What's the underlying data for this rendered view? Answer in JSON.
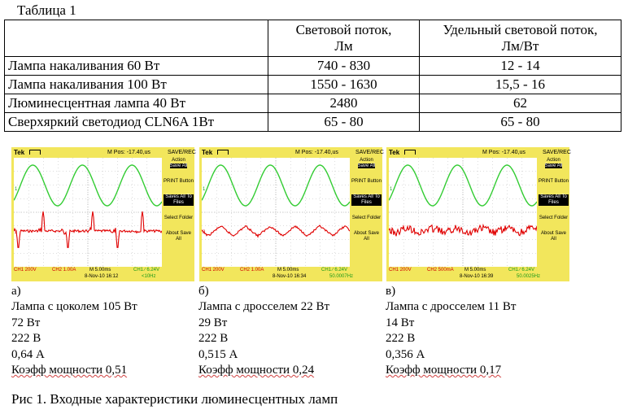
{
  "table": {
    "title": "Таблица 1",
    "headers": [
      "",
      "Световой поток, Лм",
      "Удельный световой поток, Лм/Вт"
    ],
    "rows": [
      [
        "Лампа накаливания 60 Вт",
        "740 - 830",
        "12 - 14"
      ],
      [
        "Лампа накаливания 100 Вт",
        "1550 - 1630",
        "15,5 - 16"
      ],
      [
        "Люминесцентная лампа 40 Вт",
        "2480",
        "62"
      ],
      [
        "Сверхяркий светодиод CLN6A 1Вт",
        "65 - 80",
        "65 - 80"
      ]
    ]
  },
  "scopes": [
    {
      "brand": "Tek",
      "header_mpos": "M Pos: -17.40,us",
      "header_mode": "SAVE/REC",
      "menu": [
        "Action",
        "Save All",
        "PRINT Button",
        "Saves All To Files",
        "Select Folder",
        "About Save All"
      ],
      "footer": {
        "ch1": "CH1 200V",
        "ch2": "CH2 1.00A",
        "time": "M 5.00ms",
        "trig": "CH1 ∕ 6.24V",
        "date": "8-Nov-10 16:12",
        "freq": "<10Hz"
      },
      "ch2_shape": "spikes"
    },
    {
      "brand": "Tek",
      "header_mpos": "M Pos: -17.40,us",
      "header_mode": "SAVE/REC",
      "menu": [
        "Action",
        "Save All",
        "PRINT Button",
        "Saves All To Files",
        "Select Folder",
        "About Save All"
      ],
      "footer": {
        "ch1": "CH1 200V",
        "ch2": "CH2 1.00A",
        "time": "M 5.00ms",
        "trig": "CH1 ∕ 6.24V",
        "date": "8-Nov-10 16:34",
        "freq": "50.0007Hz"
      },
      "ch2_shape": "triangle"
    },
    {
      "brand": "Tek",
      "header_mpos": "M Pos: -17.40,us",
      "header_mode": "SAVE/REC",
      "menu": [
        "Action",
        "Save All",
        "PRINT Button",
        "Saves All To Files",
        "Select Folder",
        "About Save All"
      ],
      "footer": {
        "ch1": "CH1 200V",
        "ch2": "CH2 500mA",
        "time": "M 5.00ms",
        "trig": "CH1 ∕ 6.24V",
        "date": "8-Nov-10 16:39",
        "freq": "50.0025Hz"
      },
      "ch2_shape": "noisy"
    }
  ],
  "descriptions": [
    {
      "letter": "а)",
      "lines": [
        "Лампа с цоколем 105 Вт",
        "72 Вт",
        "222 В",
        "0,64 А",
        "Коэфф мощности 0,51"
      ]
    },
    {
      "letter": "б)",
      "lines": [
        "Лампа с дросселем 22 Вт",
        "29 Вт",
        "222 В",
        "0,515 А",
        "Коэфф мощности 0,24"
      ]
    },
    {
      "letter": "в)",
      "lines": [
        "Лампа с дросселем 11 Вт",
        "14 Вт",
        "222 В",
        "0,356 А",
        "Коэфф мощности 0,17"
      ]
    }
  ],
  "caption": "Рис 1. Входные характеристики люминесцентных ламп",
  "colors": {
    "scope_bezel": "#f2e65c",
    "ch1_trace": "#33cc33",
    "ch2_trace": "#e00000"
  }
}
